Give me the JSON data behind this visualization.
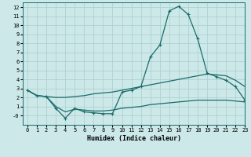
{
  "xlabel": "Humidex (Indice chaleur)",
  "bg_color": "#cce8e8",
  "line_color": "#1a6b6b",
  "grid_color": "#aacece",
  "xlim": [
    -0.5,
    23
  ],
  "ylim": [
    -1.0,
    12.5
  ],
  "xticks": [
    0,
    1,
    2,
    3,
    4,
    5,
    6,
    7,
    8,
    9,
    10,
    11,
    12,
    13,
    14,
    15,
    16,
    17,
    18,
    19,
    20,
    21,
    22,
    23
  ],
  "yticks": [
    0,
    1,
    2,
    3,
    4,
    5,
    6,
    7,
    8,
    9,
    10,
    11,
    12
  ],
  "ytick_labels": [
    "-0",
    "1",
    "2",
    "3",
    "4",
    "5",
    "6",
    "7",
    "8",
    "9",
    "10",
    "11",
    "12"
  ],
  "line1_x": [
    0,
    1,
    2,
    3,
    4,
    5,
    6,
    7,
    8,
    9,
    10,
    11,
    12,
    13,
    14,
    15,
    16,
    17,
    18,
    19,
    20,
    21,
    22,
    23
  ],
  "line1_y": [
    2.8,
    2.2,
    2.1,
    0.8,
    -0.3,
    0.8,
    0.4,
    0.3,
    0.2,
    0.2,
    2.6,
    2.8,
    3.2,
    6.5,
    7.8,
    11.6,
    12.1,
    11.2,
    8.5,
    4.7,
    4.3,
    3.9,
    3.2,
    1.7
  ],
  "line2_x": [
    0,
    1,
    2,
    3,
    4,
    5,
    6,
    7,
    8,
    9,
    10,
    11,
    12,
    13,
    14,
    15,
    16,
    17,
    18,
    19,
    20,
    21,
    22,
    23
  ],
  "line2_y": [
    2.8,
    2.2,
    2.1,
    2.0,
    2.0,
    2.1,
    2.2,
    2.4,
    2.5,
    2.6,
    2.8,
    3.0,
    3.2,
    3.4,
    3.6,
    3.8,
    4.0,
    4.2,
    4.4,
    4.6,
    4.5,
    4.4,
    3.9,
    3.2
  ],
  "line3_x": [
    0,
    1,
    2,
    3,
    4,
    5,
    6,
    7,
    8,
    9,
    10,
    11,
    12,
    13,
    14,
    15,
    16,
    17,
    18,
    19,
    20,
    21,
    22,
    23
  ],
  "line3_y": [
    2.8,
    2.2,
    2.1,
    1.0,
    0.4,
    0.7,
    0.6,
    0.5,
    0.5,
    0.6,
    0.8,
    0.9,
    1.0,
    1.2,
    1.3,
    1.4,
    1.5,
    1.6,
    1.7,
    1.7,
    1.7,
    1.7,
    1.6,
    1.5
  ]
}
